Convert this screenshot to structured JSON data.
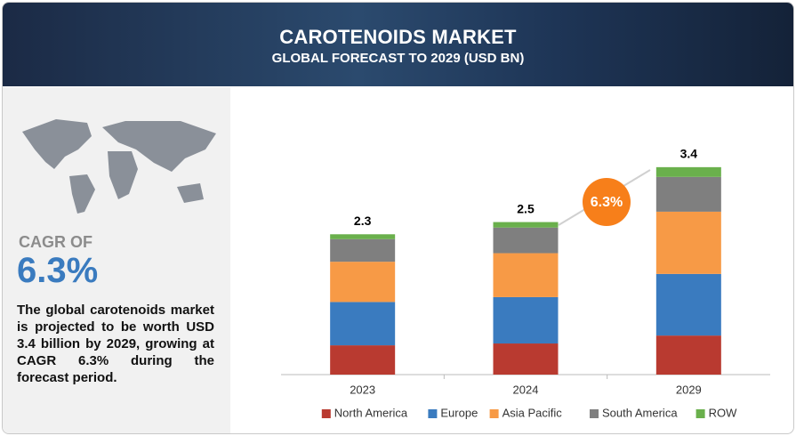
{
  "header": {
    "title": "CAROTENOIDS MARKET",
    "subtitle": "GLOBAL FORECAST TO 2029 (USD BN)"
  },
  "side": {
    "cagr_label": "CAGR OF",
    "cagr": "6.3%",
    "text": "The global carotenoids market is projected to be worth USD  3.4 billion by 2029, growing at CAGR 6.3% during the forecast period."
  },
  "chart_data": {
    "type": "bar",
    "stacked": true,
    "categories": [
      "2023",
      "2024",
      "2029"
    ],
    "series": [
      {
        "name": "North America",
        "color": "#b93a30",
        "values": [
          0.48,
          0.51,
          0.64
        ]
      },
      {
        "name": "Europe",
        "color": "#3a7bbf",
        "values": [
          0.71,
          0.76,
          1.01
        ]
      },
      {
        "name": "Asia Pacific",
        "color": "#f79a46",
        "values": [
          0.66,
          0.72,
          1.02
        ]
      },
      {
        "name": "South America",
        "color": "#7f7f7f",
        "values": [
          0.37,
          0.42,
          0.57
        ]
      },
      {
        "name": "ROW",
        "color": "#6ab04c",
        "values": [
          0.08,
          0.09,
          0.16
        ]
      }
    ],
    "totals": [
      2.3,
      2.5,
      3.4
    ],
    "annotation": "6.3%",
    "ylim": [
      0,
      3.5
    ],
    "legend": "bottom"
  }
}
